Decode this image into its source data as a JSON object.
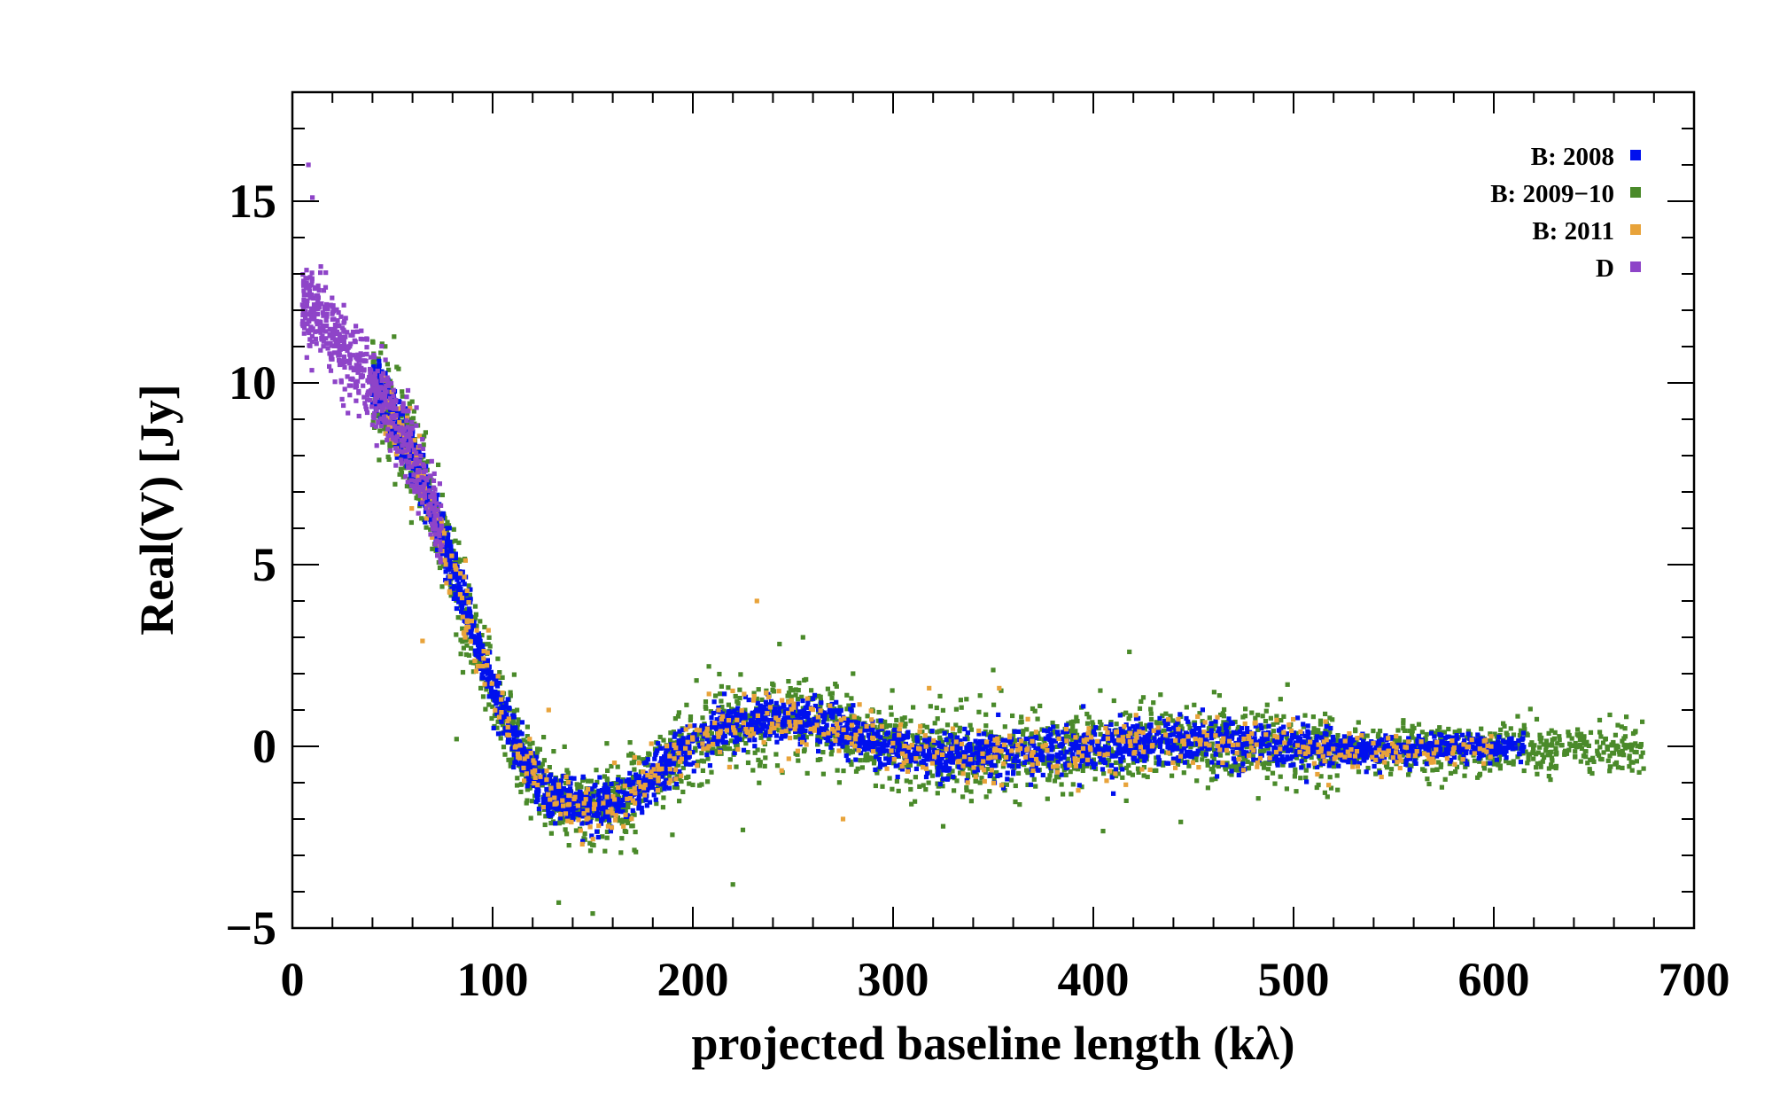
{
  "chart_data": {
    "type": "scatter",
    "title": "",
    "xlabel": "projected baseline length (kλ)",
    "ylabel": "Real(V) [Jy]",
    "xlim": [
      0,
      700
    ],
    "ylim": [
      -5,
      18
    ],
    "x_ticks": [
      0,
      100,
      200,
      300,
      400,
      500,
      600,
      700
    ],
    "y_ticks": [
      -5,
      0,
      5,
      10,
      15
    ],
    "x_tick_labels": [
      "0",
      "100",
      "200",
      "300",
      "400",
      "500",
      "600",
      "700"
    ],
    "y_tick_labels": [
      "−5",
      "0",
      "5",
      "10",
      "15"
    ],
    "legend_position": "top-right",
    "series": [
      {
        "name": "B: 2008",
        "color": "#0010ee",
        "x_range": [
          40,
          615
        ],
        "n_points": 3200,
        "scatter": 0.3
      },
      {
        "name": "B: 2009−10",
        "color": "#4a8a2a",
        "x_range": [
          40,
          675
        ],
        "n_points": 3000,
        "scatter": 0.55
      },
      {
        "name": "B: 2011",
        "color": "#e8a33a",
        "x_range": [
          45,
          600
        ],
        "n_points": 700,
        "scatter": 0.4
      },
      {
        "name": "D",
        "color": "#8e44c8",
        "x_range": [
          5,
          75
        ],
        "n_points": 600,
        "scatter": 0.55
      }
    ],
    "profile": {
      "x": [
        0,
        10,
        20,
        30,
        40,
        50,
        60,
        70,
        80,
        90,
        100,
        110,
        120,
        130,
        140,
        150,
        160,
        170,
        180,
        190,
        200,
        210,
        220,
        230,
        240,
        250,
        260,
        270,
        280,
        290,
        300,
        320,
        340,
        360,
        380,
        400,
        420,
        440,
        460,
        480,
        500,
        520,
        540,
        560,
        580,
        600,
        620,
        640,
        660,
        680
      ],
      "y": [
        12.6,
        12.0,
        11.3,
        10.6,
        10.0,
        9.1,
        8.0,
        6.5,
        4.9,
        3.2,
        1.6,
        0.3,
        -0.8,
        -1.4,
        -1.6,
        -1.7,
        -1.6,
        -1.3,
        -0.8,
        -0.3,
        0.1,
        0.4,
        0.6,
        0.7,
        0.75,
        0.75,
        0.7,
        0.55,
        0.35,
        0.15,
        -0.05,
        -0.2,
        -0.25,
        -0.2,
        -0.15,
        -0.05,
        0.05,
        0.15,
        0.1,
        0.05,
        -0.05,
        -0.1,
        -0.15,
        -0.1,
        -0.05,
        0.0,
        -0.05,
        -0.05,
        -0.05,
        0.0
      ]
    },
    "outliers": [
      {
        "series": "D",
        "x": 8,
        "y": 16.0
      },
      {
        "series": "D",
        "x": 10,
        "y": 15.1
      },
      {
        "series": "B: 2011",
        "x": 232,
        "y": 4.0
      },
      {
        "series": "B: 2009−10",
        "x": 255,
        "y": 3.0
      },
      {
        "series": "B: 2009−10",
        "x": 208,
        "y": 2.2
      },
      {
        "series": "B: 2009−10",
        "x": 280,
        "y": 2.0
      },
      {
        "series": "B: 2009−10",
        "x": 350,
        "y": 2.1
      },
      {
        "series": "B: 2009−10",
        "x": 418,
        "y": 2.6
      },
      {
        "series": "B: 2009−10",
        "x": 497,
        "y": 1.7
      },
      {
        "series": "B: 2009−10",
        "x": 463,
        "y": 1.4
      },
      {
        "series": "B: 2011",
        "x": 353,
        "y": 1.6
      },
      {
        "series": "B: 2011",
        "x": 318,
        "y": 1.6
      },
      {
        "series": "B: 2011",
        "x": 128,
        "y": 1.0
      },
      {
        "series": "B: 2008",
        "x": 395,
        "y": 1.1
      },
      {
        "series": "B: 2008",
        "x": 410,
        "y": -1.3
      },
      {
        "series": "B: 2009−10",
        "x": 220,
        "y": -3.8
      },
      {
        "series": "B: 2009−10",
        "x": 133,
        "y": -4.3
      },
      {
        "series": "B: 2009−10",
        "x": 150,
        "y": -4.6
      },
      {
        "series": "B: 2009−10",
        "x": 325,
        "y": -2.2
      },
      {
        "series": "B: 2009−10",
        "x": 225,
        "y": -2.3
      },
      {
        "series": "B: 2009−10",
        "x": 522,
        "y": -1.2
      },
      {
        "series": "B: 2011",
        "x": 275,
        "y": -2.0
      },
      {
        "series": "B: 2009−10",
        "x": 82,
        "y": 0.2
      },
      {
        "series": "B: 2011",
        "x": 65,
        "y": 2.9
      }
    ]
  }
}
